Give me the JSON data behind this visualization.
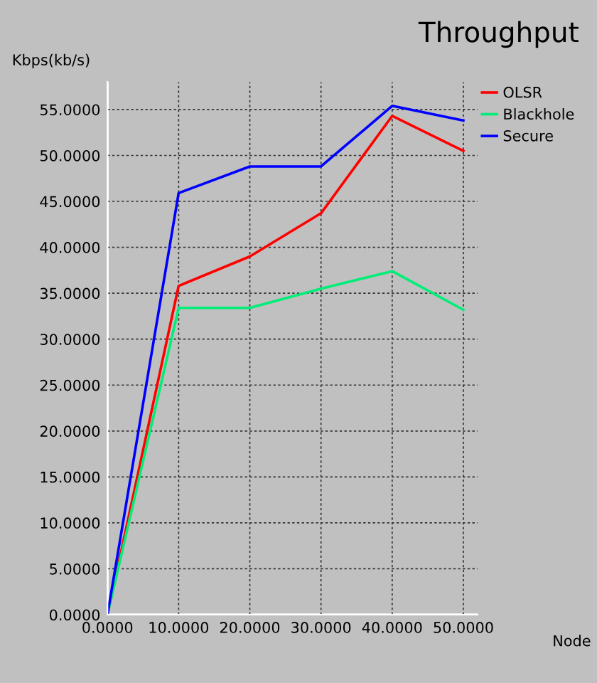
{
  "chart_data": {
    "type": "line",
    "title": "Throughput",
    "xlabel": "Node",
    "ylabel": "Kbps(kb/s)",
    "x": [
      0,
      10,
      20,
      30,
      40,
      50
    ],
    "series": [
      {
        "name": "OLSR",
        "color": "#ff0000",
        "values": [
          0,
          35.8,
          39.0,
          43.7,
          54.3,
          50.5
        ]
      },
      {
        "name": "Blackhole",
        "color": "#00ee77",
        "values": [
          0,
          33.4,
          33.4,
          35.5,
          37.4,
          33.2
        ]
      },
      {
        "name": "Secure",
        "color": "#0000ff",
        "values": [
          0,
          45.9,
          48.8,
          48.8,
          55.4,
          53.8
        ]
      }
    ],
    "xlim": [
      0,
      52
    ],
    "ylim": [
      0,
      58
    ],
    "xticks": [
      {
        "value": 0,
        "label": "0.0000"
      },
      {
        "value": 10,
        "label": "10.0000"
      },
      {
        "value": 20,
        "label": "20.0000"
      },
      {
        "value": 30,
        "label": "30.0000"
      },
      {
        "value": 40,
        "label": "40.0000"
      },
      {
        "value": 50,
        "label": "50.0000"
      }
    ],
    "yticks": [
      {
        "value": 0,
        "label": "0.0000"
      },
      {
        "value": 5,
        "label": "5.0000"
      },
      {
        "value": 10,
        "label": "10.0000"
      },
      {
        "value": 15,
        "label": "15.0000"
      },
      {
        "value": 20,
        "label": "20.0000"
      },
      {
        "value": 25,
        "label": "25.0000"
      },
      {
        "value": 30,
        "label": "30.0000"
      },
      {
        "value": 35,
        "label": "35.0000"
      },
      {
        "value": 40,
        "label": "40.0000"
      },
      {
        "value": 45,
        "label": "45.0000"
      },
      {
        "value": 50,
        "label": "50.0000"
      },
      {
        "value": 55,
        "label": "55.0000"
      }
    ],
    "grid": true,
    "legend": "top right",
    "marker": "none",
    "line_style": "solid"
  }
}
